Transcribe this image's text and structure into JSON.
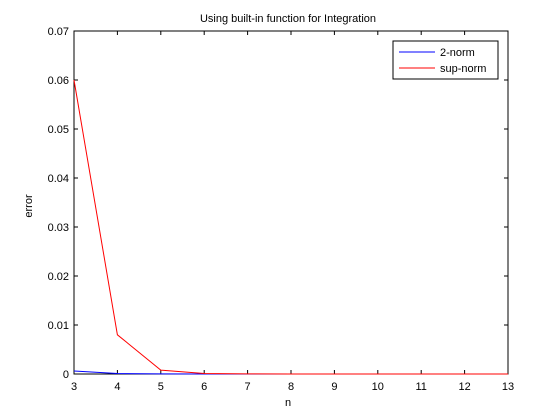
{
  "chart_data": {
    "type": "line",
    "title": "Using built-in function for Integration",
    "xlabel": "n",
    "ylabel": "error",
    "xlim": [
      3,
      13
    ],
    "ylim": [
      0,
      0.07
    ],
    "xticks": [
      3,
      4,
      5,
      6,
      7,
      8,
      9,
      10,
      11,
      12,
      13
    ],
    "yticks": [
      0,
      0.01,
      0.02,
      0.03,
      0.04,
      0.05,
      0.06,
      0.07
    ],
    "xtick_labels": [
      "3",
      "4",
      "5",
      "6",
      "7",
      "8",
      "9",
      "10",
      "11",
      "12",
      "13"
    ],
    "ytick_labels": [
      "0",
      "0.01",
      "0.02",
      "0.03",
      "0.04",
      "0.05",
      "0.06",
      "0.07"
    ],
    "grid": false,
    "legend_position": "top-right",
    "x": [
      3,
      4,
      5,
      6,
      7,
      8,
      9,
      10,
      11,
      12,
      13
    ],
    "series": [
      {
        "name": "2-norm",
        "color": "#0000ff",
        "values": [
          0.0006,
          0.0001,
          3e-05,
          1e-05,
          5e-06,
          3e-06,
          2e-06,
          1e-06,
          1e-06,
          1e-06,
          1e-06
        ]
      },
      {
        "name": "sup-norm",
        "color": "#ff0000",
        "values": [
          0.06,
          0.008,
          0.0008,
          0.0001,
          3e-05,
          1e-05,
          5e-06,
          3e-06,
          2e-06,
          1e-06,
          1e-06
        ]
      }
    ]
  }
}
